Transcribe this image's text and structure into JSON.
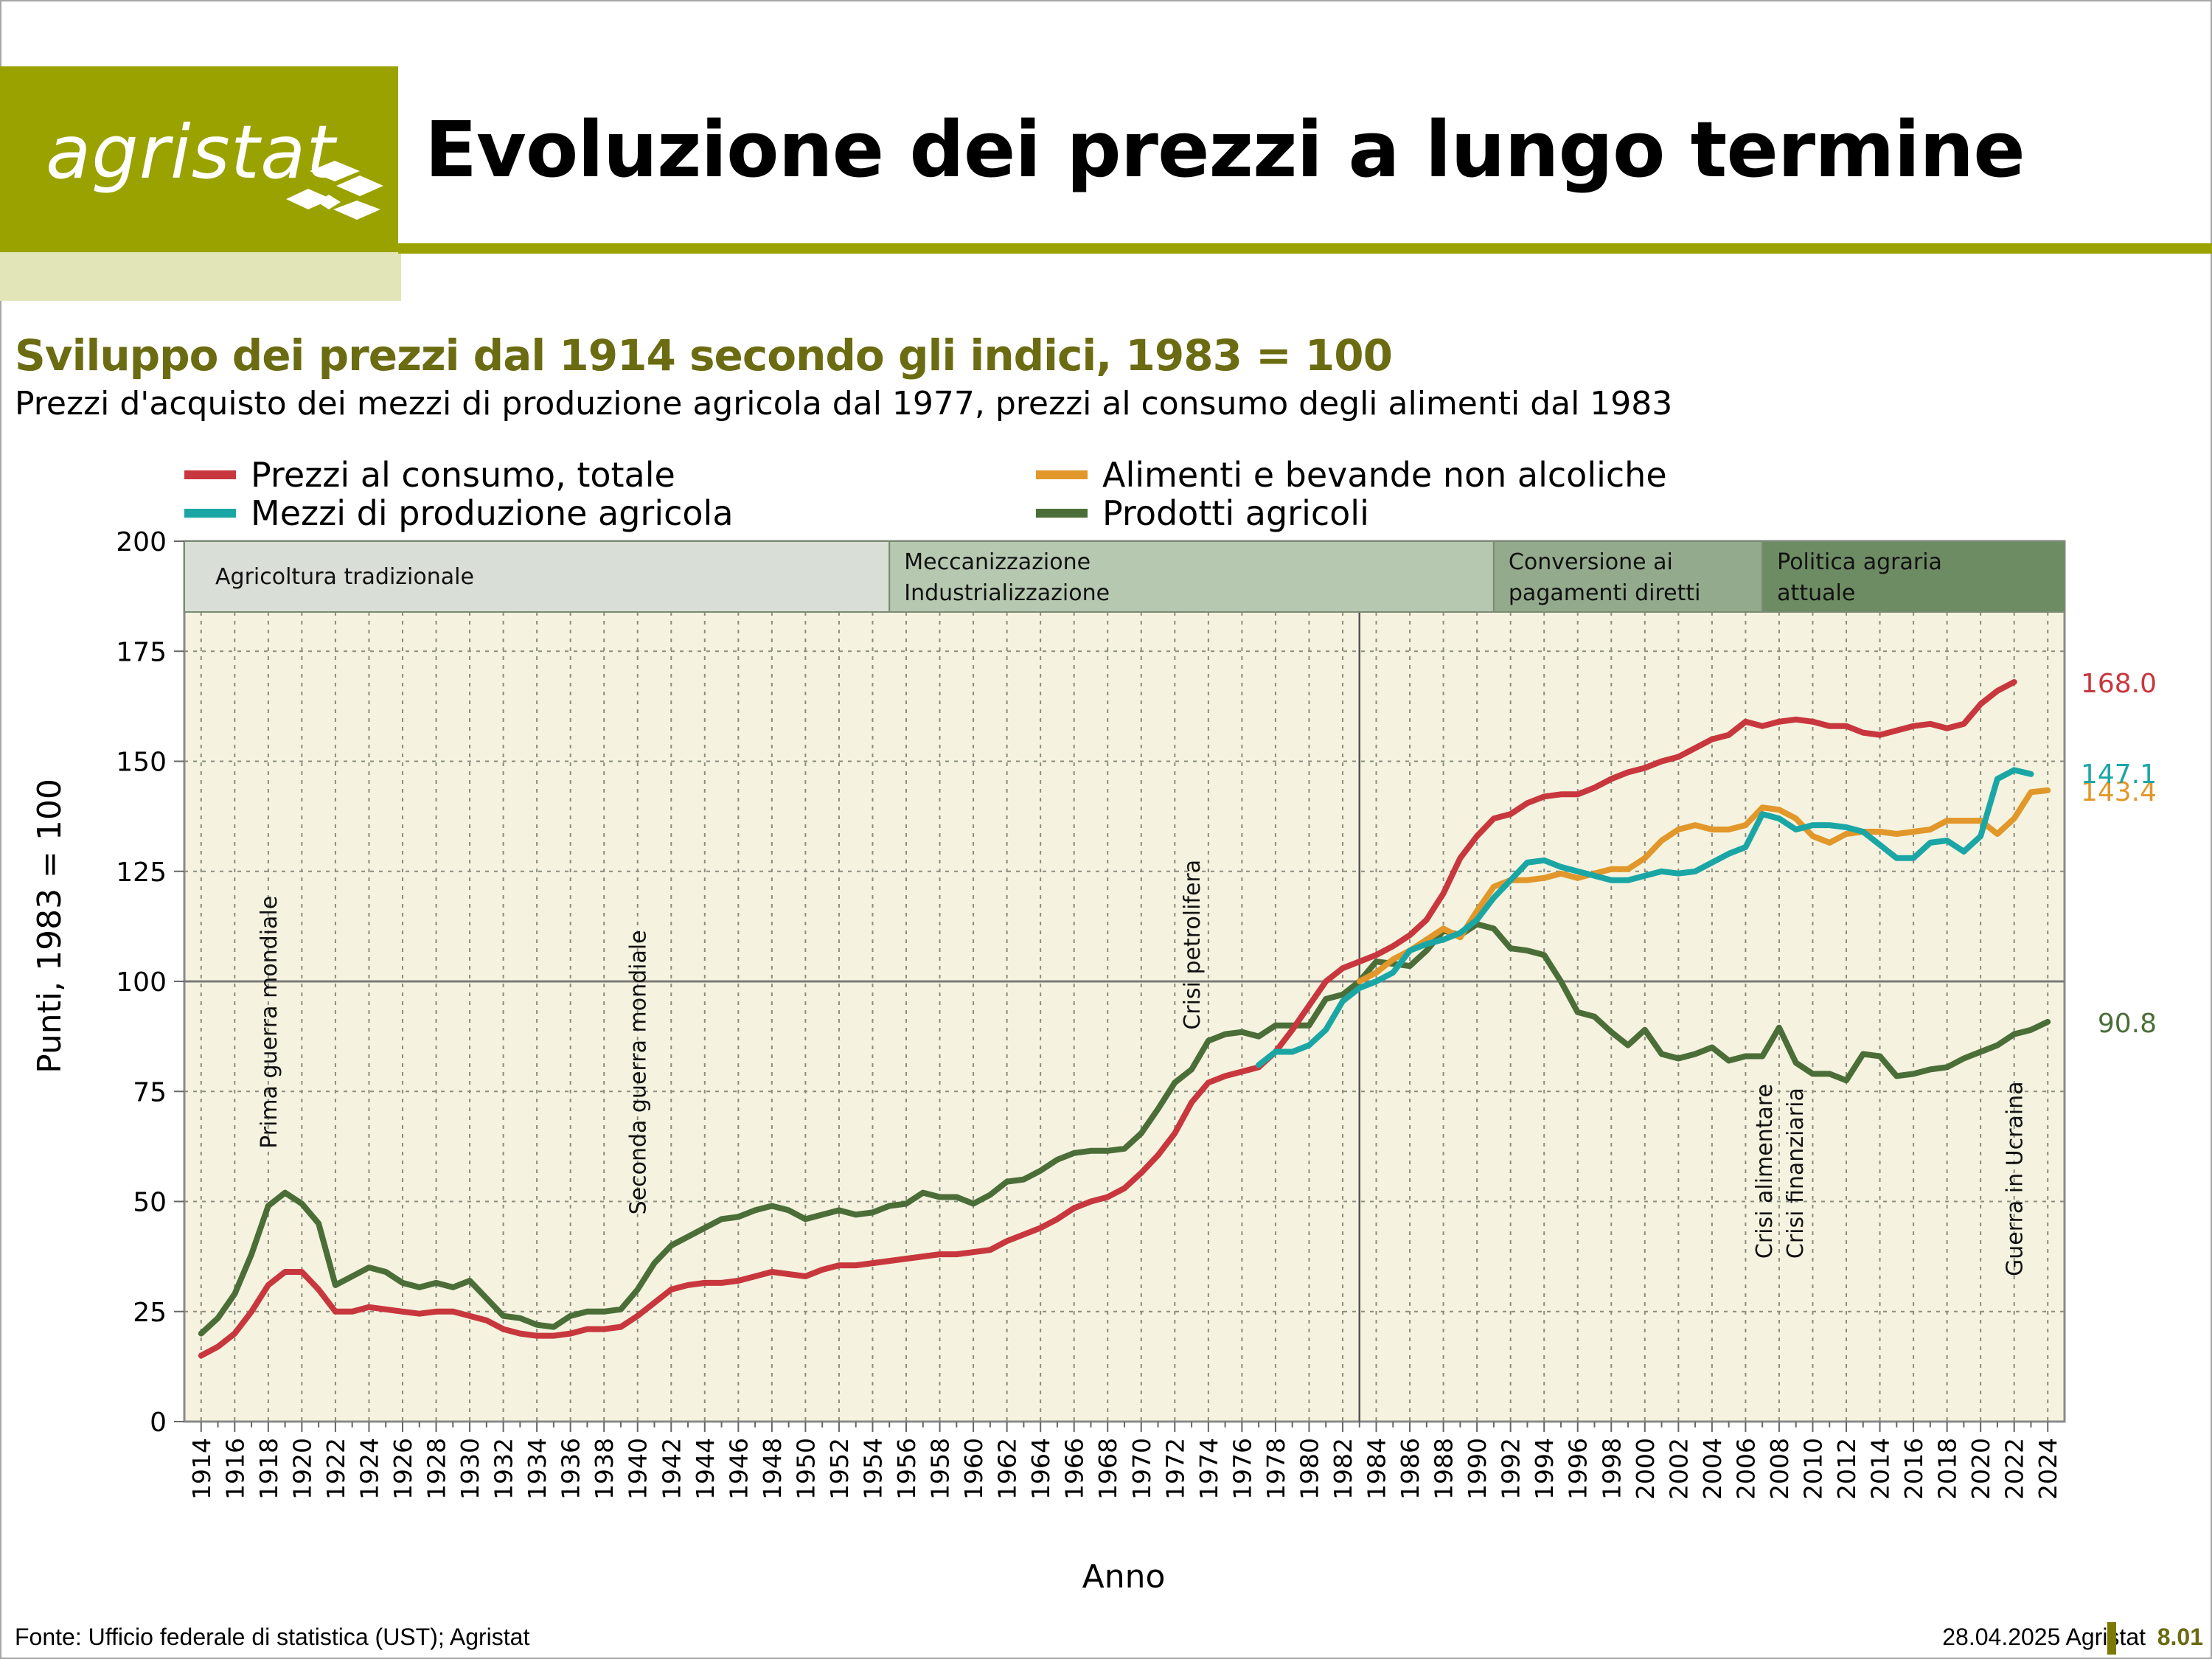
{
  "header": {
    "logo_text": "agristat",
    "title": "Evoluzione dei prezzi a lungo termine",
    "brand_color": "#9aa200"
  },
  "subtitle": "Sviluppo dei prezzi dal 1914 secondo gli indici, 1983 = 100",
  "note": "Prezzi d'acquisto dei mezzi di produzione agricola dal 1977, prezzi al consumo degli alimenti dal 1983",
  "footer": {
    "source": "Fonte: Ufficio federale di statistica (UST); Agristat",
    "date": "28.04.2025 Agristat",
    "code": "8.01"
  },
  "chart_data": {
    "type": "line",
    "xlabel": "Anno",
    "ylabel": "Punti, 1983 = 100",
    "xlim": [
      1914,
      2024
    ],
    "ylim": [
      0,
      200
    ],
    "yticks": [
      0,
      25,
      50,
      75,
      100,
      125,
      150,
      175,
      200
    ],
    "grid": true,
    "reference_line": 100,
    "reference_year": 1983,
    "legend_position": "top",
    "periods": [
      {
        "label": [
          "Agricoltura tradizionale"
        ],
        "from": 1913,
        "to": 1955,
        "color": "#d9dfd6"
      },
      {
        "label": [
          "Meccanizzazione",
          "Industrializzazione"
        ],
        "from": 1955,
        "to": 1991,
        "color": "#b7c8b1"
      },
      {
        "label": [
          "Conversione ai",
          "pagamenti diretti"
        ],
        "from": 1991,
        "to": 2007,
        "color": "#93ab8c"
      },
      {
        "label": [
          "Politica agraria",
          "attuale"
        ],
        "from": 2007,
        "to": 2025,
        "color": "#6e8c63"
      }
    ],
    "annotations": [
      {
        "lines": [
          "Prima guerra mondiale"
        ],
        "year": 1918,
        "y": 62
      },
      {
        "lines": [
          "Seconda guerra mondiale"
        ],
        "year": 1940,
        "y": 47
      },
      {
        "lines": [
          "Crisi petrolifera"
        ],
        "year": 1973,
        "y": 89
      },
      {
        "lines": [
          "Crisi alimentare",
          "Crisi finanziaria"
        ],
        "year": 2008,
        "y": 37
      },
      {
        "lines": [
          "Guerra in Ucraina"
        ],
        "year": 2022,
        "y": 33
      }
    ],
    "series": [
      {
        "name": "Prezzi al consumo, totale",
        "color": "#c8373d",
        "start": 1914,
        "end_label": "168.0",
        "values": [
          15,
          17,
          20,
          25,
          31,
          34,
          34,
          30,
          25,
          25,
          26,
          25.5,
          25,
          24.5,
          25,
          25,
          24,
          23,
          21,
          20,
          19.5,
          19.5,
          20,
          21,
          21,
          21.5,
          24,
          27,
          30,
          31,
          31.5,
          31.5,
          32,
          33,
          34,
          33.5,
          33,
          34.5,
          35.5,
          35.5,
          36,
          36.5,
          37,
          37.5,
          38,
          38,
          38.5,
          39,
          41,
          42.5,
          44,
          46,
          48.5,
          50,
          51,
          53,
          56.5,
          60.5,
          65.5,
          72.5,
          77,
          78.5,
          79.5,
          80.5,
          84,
          89,
          94.5,
          100,
          103,
          104.5,
          106,
          108,
          110.5,
          114,
          120,
          128,
          133,
          137,
          138,
          140.5,
          142,
          142.5,
          142.5,
          144,
          146,
          147.5,
          148.5,
          150,
          151,
          153,
          155,
          156,
          159,
          158,
          159,
          159.5,
          159,
          158,
          158,
          156.5,
          156,
          157,
          158,
          158.5,
          157.5,
          158.5,
          163,
          166,
          168
        ]
      },
      {
        "name": "Alimenti e bevande non alcoliche",
        "color": "#e2972a",
        "start": 1983,
        "end_label": "143.4",
        "values": [
          100,
          102,
          105,
          107,
          109.5,
          112,
          110,
          116,
          121.5,
          123,
          123,
          123.5,
          124.5,
          123.5,
          124.5,
          125.5,
          125.5,
          128,
          132,
          134.5,
          135.5,
          134.5,
          134.5,
          135.5,
          139.5,
          139,
          137,
          133,
          131.5,
          133.5,
          134,
          134,
          133.5,
          134,
          134.5,
          136.5,
          136.5,
          136.5,
          133.5,
          137,
          143,
          143.4
        ]
      },
      {
        "name": "Mezzi di produzione agricola",
        "color": "#1ba6a6",
        "start": 1977,
        "end_label": "147.1",
        "values": [
          81,
          84,
          84,
          85.5,
          89,
          95.5,
          98.5,
          100,
          102,
          107,
          108.5,
          109.5,
          111,
          114,
          119,
          123,
          127,
          127.5,
          126,
          125,
          124,
          123,
          123,
          124,
          125,
          124.5,
          125,
          127,
          129,
          130.5,
          138,
          137,
          134.5,
          135.5,
          135.5,
          135,
          134,
          131,
          128,
          128,
          131.5,
          132,
          129.5,
          133,
          146,
          148,
          147.1
        ]
      },
      {
        "name": "Prodotti agricoli",
        "color": "#4b6e39",
        "start": 1914,
        "end_label": "90.8",
        "values": [
          20,
          23.5,
          29,
          38,
          49,
          52,
          49.5,
          45,
          31,
          33,
          35,
          34,
          31.5,
          30.5,
          31.5,
          30.5,
          32,
          28,
          24,
          23.5,
          22,
          21.5,
          24,
          25,
          25,
          25.5,
          30,
          36,
          40,
          42,
          44,
          46,
          46.5,
          48,
          49,
          48,
          46,
          47,
          48,
          47,
          47.5,
          49,
          49.5,
          52,
          51,
          51,
          49.5,
          51.5,
          54.5,
          55,
          57,
          59.5,
          61,
          61.5,
          61.5,
          62,
          65.5,
          71,
          77,
          80,
          86.5,
          88,
          88.5,
          87.5,
          90,
          90,
          90,
          96,
          97,
          100,
          104.5,
          104,
          103.5,
          107,
          111.5,
          110.5,
          113,
          112,
          107.5,
          107,
          106,
          100,
          93,
          92,
          88.5,
          85.5,
          89,
          83.5,
          82.5,
          83.5,
          85,
          82,
          83,
          83,
          89.5,
          81.5,
          79,
          79,
          77.5,
          83.5,
          83,
          78.5,
          79,
          80,
          80.5,
          82.5,
          84,
          85.5,
          88,
          89,
          90.8
        ]
      }
    ]
  }
}
